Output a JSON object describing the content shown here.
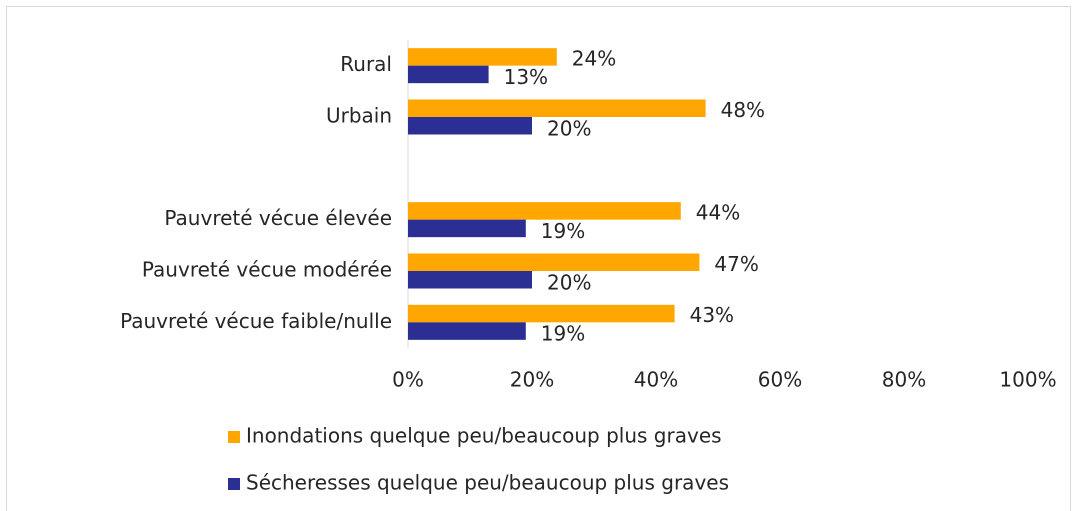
{
  "chart_data": {
    "type": "hbar",
    "categories": [
      "Rural",
      "Urbain",
      null,
      "Pauvreté vécue élevée",
      "Pauvreté vécue modérée",
      "Pauvreté vécue faible/nulle"
    ],
    "series": [
      {
        "name": "Inondations quelque peu/beaucoup plus graves",
        "color": "#FFA600",
        "values": [
          24,
          48,
          null,
          44,
          47,
          43
        ],
        "value_labels": [
          "24%",
          "48%",
          null,
          "44%",
          "47%",
          "43%"
        ]
      },
      {
        "name": "Sécheresses quelque peu/beaucoup plus graves",
        "color": "#2B2E93",
        "values": [
          13,
          20,
          null,
          19,
          20,
          19
        ],
        "value_labels": [
          "13%",
          "20%",
          null,
          "19%",
          "20%",
          "19%"
        ]
      }
    ],
    "xlim": [
      0,
      100
    ],
    "xticks": [
      {
        "value": 0,
        "label": "0%"
      },
      {
        "value": 20,
        "label": "20%"
      },
      {
        "value": 40,
        "label": "40%"
      },
      {
        "value": 60,
        "label": "60%"
      },
      {
        "value": 80,
        "label": "80%"
      },
      {
        "value": 100,
        "label": "100%"
      }
    ],
    "legend": "bottom"
  }
}
